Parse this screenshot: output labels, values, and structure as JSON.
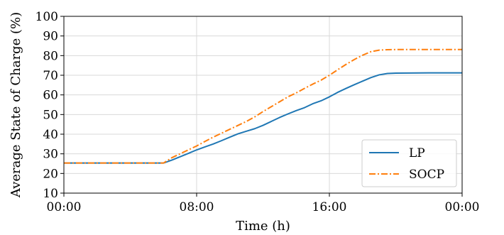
{
  "chart_data": {
    "type": "line",
    "xlabel": "Time (h)",
    "ylabel": "Average State of Charge (%)",
    "xlim": [
      0,
      24
    ],
    "ylim": [
      10,
      100
    ],
    "x_ticks": [
      {
        "value": 0,
        "label": "00:00"
      },
      {
        "value": 8,
        "label": "08:00"
      },
      {
        "value": 16,
        "label": "16:00"
      },
      {
        "value": 24,
        "label": "00:00"
      }
    ],
    "y_ticks": [
      10,
      20,
      30,
      40,
      50,
      60,
      70,
      80,
      90,
      100
    ],
    "grid": true,
    "legend_position": "bottom-right",
    "series": [
      {
        "name": "LP",
        "color": "#1f77b4",
        "linestyle": "solid",
        "points": [
          [
            0,
            25.3
          ],
          [
            6,
            25.3
          ],
          [
            6.5,
            26.8
          ],
          [
            7,
            28.5
          ],
          [
            7.5,
            30.2
          ],
          [
            8,
            32
          ],
          [
            8.5,
            33.5
          ],
          [
            9,
            35
          ],
          [
            9.5,
            36.7
          ],
          [
            10,
            38.5
          ],
          [
            10.5,
            40.2
          ],
          [
            11,
            41.5
          ],
          [
            11.5,
            42.8
          ],
          [
            12,
            44.5
          ],
          [
            12.5,
            46.5
          ],
          [
            13,
            48.5
          ],
          [
            13.5,
            50.3
          ],
          [
            14,
            52
          ],
          [
            14.5,
            53.5
          ],
          [
            15,
            55.5
          ],
          [
            15.5,
            57
          ],
          [
            16,
            59
          ],
          [
            16.5,
            61.3
          ],
          [
            17,
            63.3
          ],
          [
            17.5,
            65.2
          ],
          [
            18,
            67
          ],
          [
            18.5,
            68.8
          ],
          [
            19,
            70.2
          ],
          [
            19.5,
            70.9
          ],
          [
            20,
            71.1
          ],
          [
            22,
            71.2
          ],
          [
            24,
            71.2
          ]
        ]
      },
      {
        "name": "SOCP",
        "color": "#ff7f0e",
        "linestyle": "dashdot",
        "points": [
          [
            0,
            25.3
          ],
          [
            6,
            25.3
          ],
          [
            6.5,
            28
          ],
          [
            7,
            30
          ],
          [
            7.5,
            32
          ],
          [
            8,
            34
          ],
          [
            8.5,
            36.3
          ],
          [
            9,
            38.5
          ],
          [
            9.5,
            40.5
          ],
          [
            10,
            42.5
          ],
          [
            10.5,
            44.5
          ],
          [
            11,
            46.5
          ],
          [
            11.5,
            48.8
          ],
          [
            12,
            51.5
          ],
          [
            12.5,
            54
          ],
          [
            13,
            56.5
          ],
          [
            13.5,
            59
          ],
          [
            14,
            61
          ],
          [
            14.5,
            63.3
          ],
          [
            15,
            65.5
          ],
          [
            15.5,
            67.5
          ],
          [
            16,
            70
          ],
          [
            16.5,
            72.8
          ],
          [
            17,
            75.5
          ],
          [
            17.5,
            78
          ],
          [
            18,
            80.2
          ],
          [
            18.5,
            82
          ],
          [
            19,
            82.8
          ],
          [
            19.5,
            83
          ],
          [
            20,
            83.1
          ],
          [
            22,
            83.1
          ],
          [
            24,
            83.1
          ]
        ]
      }
    ]
  }
}
